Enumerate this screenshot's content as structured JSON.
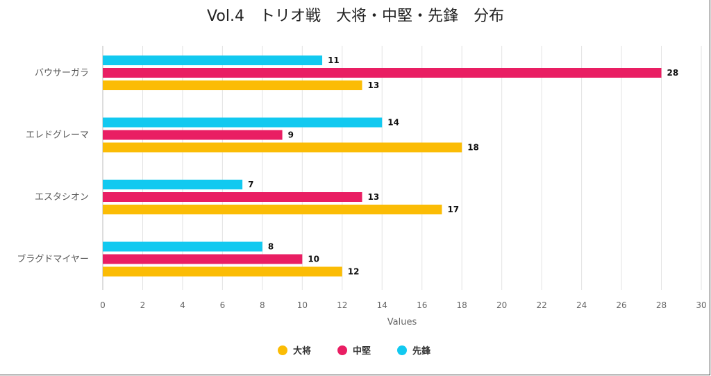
{
  "chart_data": {
    "type": "bar",
    "orientation": "horizontal",
    "title": "Vol.4　トリオ戦　大将・中堅・先鋒　分布",
    "xlabel": "Values",
    "ylabel": "",
    "xlim": [
      0,
      30
    ],
    "xticks": [
      0,
      2,
      4,
      6,
      8,
      10,
      12,
      14,
      16,
      18,
      20,
      22,
      24,
      26,
      28,
      30
    ],
    "grid": true,
    "legend_position": "bottom",
    "categories": [
      "バウサーガラ",
      "エレドグレーマ",
      "エスタシオン",
      "ブラグドマイヤー"
    ],
    "series": [
      {
        "name": "大将",
        "color": "#FBBC05",
        "values": [
          13,
          18,
          17,
          12
        ]
      },
      {
        "name": "中堅",
        "color": "#E91E63",
        "values": [
          28,
          9,
          13,
          10
        ]
      },
      {
        "name": "先鋒",
        "color": "#12C9F0",
        "values": [
          11,
          14,
          7,
          8
        ]
      }
    ],
    "bar_stack_order_top_to_bottom": [
      "先鋒",
      "中堅",
      "大将"
    ]
  }
}
